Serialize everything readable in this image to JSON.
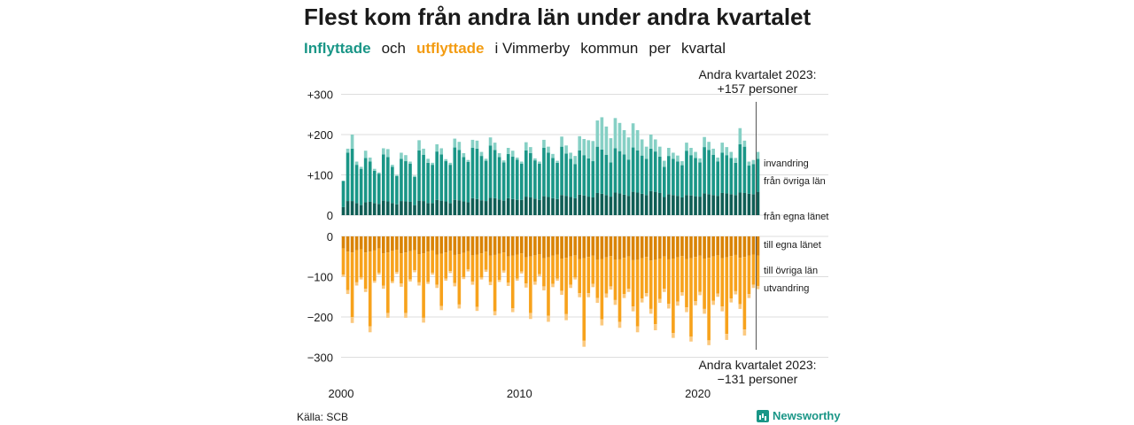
{
  "title": "Flest kom från andra län under andra kvartalet",
  "subtitle": {
    "w1": "Inflyttade",
    "w2": "och",
    "w3": "utflyttade",
    "w4": "i Vimmerby",
    "w5": "kommun",
    "w6": "per",
    "w7": "kvartal"
  },
  "source": "Källa: SCB",
  "brand": "Newsworthy",
  "colors": {
    "in_local": "#0f5e55",
    "in_other": "#1a9687",
    "in_abroad": "#86d0c5",
    "out_local": "#d98305",
    "out_other": "#f7a21c",
    "out_abroad": "#fbc97f",
    "grid": "#dddddd",
    "text": "#1a1a1a"
  },
  "chart_data": {
    "type": "bar",
    "stacked": true,
    "x_start": "2000 Q1",
    "x_end": "2023 Q2",
    "frequency": "quarterly",
    "xticks": [
      "2000",
      "2010",
      "2020"
    ],
    "yticks": [
      "+300",
      "+200",
      "+100",
      "0",
      "−100",
      "−200",
      "−300"
    ],
    "ylim": [
      -300,
      300
    ],
    "series": [
      {
        "name": "från egna länet",
        "values": [
          20,
          35,
          35,
          30,
          25,
          32,
          33,
          30,
          28,
          36,
          34,
          30,
          27,
          35,
          34,
          33,
          25,
          36,
          35,
          30,
          30,
          38,
          36,
          34,
          30,
          38,
          37,
          34,
          32,
          42,
          40,
          37,
          35,
          43,
          42,
          39,
          36,
          42,
          40,
          38,
          38,
          46,
          44,
          41,
          38,
          47,
          45,
          42,
          40,
          50,
          48,
          45,
          42,
          51,
          49,
          46,
          44,
          55,
          53,
          50,
          46,
          56,
          54,
          51,
          48,
          58,
          56,
          53,
          50,
          60,
          58,
          55,
          45,
          52,
          50,
          48,
          44,
          50,
          49,
          47,
          46,
          54,
          52,
          50,
          48,
          55,
          54,
          52,
          50,
          56,
          55,
          53,
          52,
          58
        ]
      },
      {
        "name": "från övriga län",
        "values": [
          65,
          120,
          130,
          95,
          90,
          110,
          100,
          80,
          75,
          115,
          110,
          90,
          70,
          105,
          100,
          95,
          70,
          125,
          115,
          100,
          95,
          120,
          115,
          100,
          95,
          130,
          125,
          110,
          100,
          125,
          125,
          110,
          100,
          130,
          120,
          105,
          95,
          110,
          105,
          100,
          90,
          115,
          110,
          95,
          90,
          120,
          110,
          100,
          90,
          120,
          105,
          95,
          85,
          110,
          100,
          95,
          90,
          115,
          110,
          100,
          85,
          110,
          105,
          100,
          90,
          110,
          105,
          95,
          90,
          105,
          100,
          90,
          75,
          95,
          90,
          85,
          80,
          110,
          100,
          95,
          85,
          115,
          110,
          100,
          85,
          100,
          95,
          90,
          80,
          120,
          115,
          70,
          75,
          82
        ]
      },
      {
        "name": "invandring",
        "values": [
          0,
          10,
          35,
          8,
          5,
          18,
          10,
          5,
          3,
          15,
          20,
          5,
          3,
          15,
          15,
          5,
          3,
          25,
          15,
          10,
          5,
          18,
          15,
          5,
          5,
          22,
          20,
          10,
          5,
          20,
          20,
          10,
          5,
          20,
          18,
          10,
          5,
          15,
          15,
          5,
          5,
          20,
          15,
          5,
          5,
          20,
          15,
          10,
          5,
          25,
          20,
          15,
          20,
          35,
          40,
          45,
          50,
          65,
          80,
          70,
          60,
          75,
          70,
          60,
          55,
          60,
          50,
          40,
          30,
          35,
          30,
          25,
          15,
          20,
          15,
          15,
          10,
          20,
          18,
          15,
          10,
          25,
          20,
          15,
          10,
          25,
          20,
          15,
          12,
          40,
          15,
          10,
          10,
          17
        ]
      },
      {
        "name": "till egna länet",
        "values": [
          -30,
          -38,
          -40,
          -34,
          -32,
          -40,
          -38,
          -35,
          -30,
          -42,
          -40,
          -36,
          -33,
          -42,
          -40,
          -37,
          -34,
          -44,
          -42,
          -38,
          -35,
          -45,
          -43,
          -40,
          -36,
          -46,
          -44,
          -41,
          -37,
          -47,
          -45,
          -42,
          -38,
          -48,
          -46,
          -43,
          -40,
          -50,
          -48,
          -45,
          -42,
          -52,
          -50,
          -47,
          -44,
          -54,
          -52,
          -48,
          -45,
          -55,
          -53,
          -50,
          -47,
          -56,
          -54,
          -51,
          -48,
          -58,
          -56,
          -52,
          -49,
          -58,
          -57,
          -53,
          -50,
          -59,
          -58,
          -54,
          -51,
          -60,
          -58,
          -55,
          -50,
          -57,
          -55,
          -52,
          -49,
          -56,
          -54,
          -51,
          -48,
          -55,
          -53,
          -50,
          -47,
          -54,
          -52,
          -49,
          -46,
          -53,
          -51,
          -48,
          -45,
          -48
        ]
      },
      {
        "name": "till övriga län",
        "values": [
          -65,
          -95,
          -160,
          -80,
          -70,
          -90,
          -185,
          -75,
          -60,
          -80,
          -150,
          -75,
          -55,
          -75,
          -150,
          -70,
          -50,
          -70,
          -160,
          -75,
          -55,
          -75,
          -130,
          -65,
          -50,
          -70,
          -125,
          -60,
          -45,
          -65,
          -130,
          -60,
          -45,
          -65,
          -140,
          -65,
          -45,
          -65,
          -130,
          -60,
          -45,
          -65,
          -140,
          -65,
          -50,
          -70,
          -145,
          -70,
          -60,
          -80,
          -140,
          -70,
          -55,
          -85,
          -205,
          -90,
          -70,
          -95,
          -150,
          -90,
          -75,
          -100,
          -155,
          -90,
          -80,
          -115,
          -165,
          -100,
          -90,
          -120,
          -160,
          -100,
          -80,
          -110,
          -185,
          -110,
          -90,
          -120,
          -195,
          -110,
          -90,
          -125,
          -205,
          -110,
          -95,
          -120,
          -190,
          -105,
          -90,
          -115,
          -180,
          -95,
          -75,
          -75
        ]
      },
      {
        "name": "utvandring",
        "values": [
          -5,
          -10,
          -15,
          -8,
          -5,
          -8,
          -15,
          -5,
          -5,
          -8,
          -12,
          -5,
          -5,
          -8,
          -12,
          -5,
          -5,
          -8,
          -12,
          -5,
          -5,
          -8,
          -10,
          -5,
          -5,
          -8,
          -10,
          -5,
          -5,
          -8,
          -10,
          -5,
          -5,
          -8,
          -10,
          -5,
          -5,
          -8,
          -10,
          -5,
          -5,
          -10,
          -15,
          -8,
          -5,
          -10,
          -15,
          -8,
          -5,
          -10,
          -15,
          -8,
          -5,
          -10,
          -15,
          -10,
          -8,
          -12,
          -15,
          -10,
          -8,
          -12,
          -15,
          -10,
          -8,
          -12,
          -15,
          -10,
          -8,
          -12,
          -15,
          -10,
          -8,
          -12,
          -12,
          -10,
          -8,
          -12,
          -12,
          -10,
          -8,
          -12,
          -12,
          -10,
          -8,
          -12,
          -15,
          -10,
          -8,
          -12,
          -15,
          -10,
          -8,
          -8
        ]
      }
    ],
    "labels_in": [
      "invandring",
      "från övriga län",
      "från egna länet"
    ],
    "labels_out": [
      "till egna länet",
      "till övriga län",
      "utvandring"
    ],
    "annotation_top": [
      "Andra kvartalet 2023:",
      "+157 personer"
    ],
    "annotation_bottom": [
      "Andra kvartalet 2023:",
      "−131 personer"
    ],
    "grid": true
  }
}
